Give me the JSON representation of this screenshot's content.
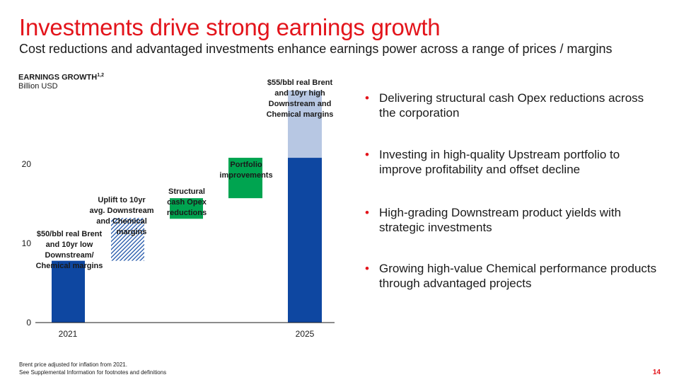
{
  "slide": {
    "title": "Investments drive strong earnings growth",
    "subtitle": "Cost reductions and advantaged investments enhance earnings power across a range of prices / margins",
    "page_number": "14"
  },
  "chart_data": {
    "type": "bar",
    "title": "EARNINGS GROWTH",
    "title_superscript": "1,2",
    "unit": "Billion USD",
    "categories": [
      "2021",
      "Uplift to 10yr avg. Downstream and Chemical margins",
      "Structural cash Opex reductions",
      "Portfolio improvements",
      "2025"
    ],
    "ylim": [
      0,
      32
    ],
    "y_ticks": [
      0,
      10,
      20
    ],
    "bars": [
      {
        "label": "$50/bbl real Brent and 10yr low Downstream/ Chemical margins",
        "base": 0,
        "value": 7.8,
        "style": "solid",
        "color": "#0e47a1"
      },
      {
        "label": "Uplift to 10yr avg. Downstream and Chemical margins",
        "base": 7.8,
        "value": 5.4,
        "style": "hatched",
        "color": "#0e47a1"
      },
      {
        "label": "Structural cash Opex reductions",
        "base": 13.1,
        "value": 2.6,
        "style": "solid",
        "color": "#00a450"
      },
      {
        "label": "Portfolio improvements",
        "base": 15.7,
        "value": 5.1,
        "style": "solid",
        "color": "#00a450"
      },
      {
        "label": "2025",
        "base": 0,
        "value": 20.8,
        "style": "solid",
        "color": "#0e47a1"
      },
      {
        "label": "$55/bbl real Brent and 10yr high Downstream and Chemical margins",
        "base": 20.8,
        "value": 8.5,
        "style": "solid",
        "color": "#b7c7e3"
      }
    ],
    "annotations": [
      "$50/bbl real Brent and 10yr low Downstream/ Chemical margins",
      "Uplift to 10yr avg. Downstream and Chemical margins",
      "Structural cash Opex reductions",
      "Portfolio improvements",
      "$55/bbl real Brent and 10yr high Downstream and Chemical margins"
    ],
    "grid": false,
    "legend": "none"
  },
  "bullets": [
    "Delivering structural cash Opex reductions across the corporation",
    "Investing in high-quality Upstream portfolio to improve profitability and offset decline",
    "High-grading Downstream product yields with strategic investments",
    "Growing high-value Chemical performance products through advantaged projects"
  ],
  "footnotes": [
    "Brent price adjusted for inflation from 2021.",
    "See Supplemental Information for footnotes and definitions"
  ],
  "colors": {
    "accent_red": "#e3141b",
    "dark_blue": "#0e47a1",
    "light_blue": "#b7c7e3",
    "green": "#00a450"
  }
}
